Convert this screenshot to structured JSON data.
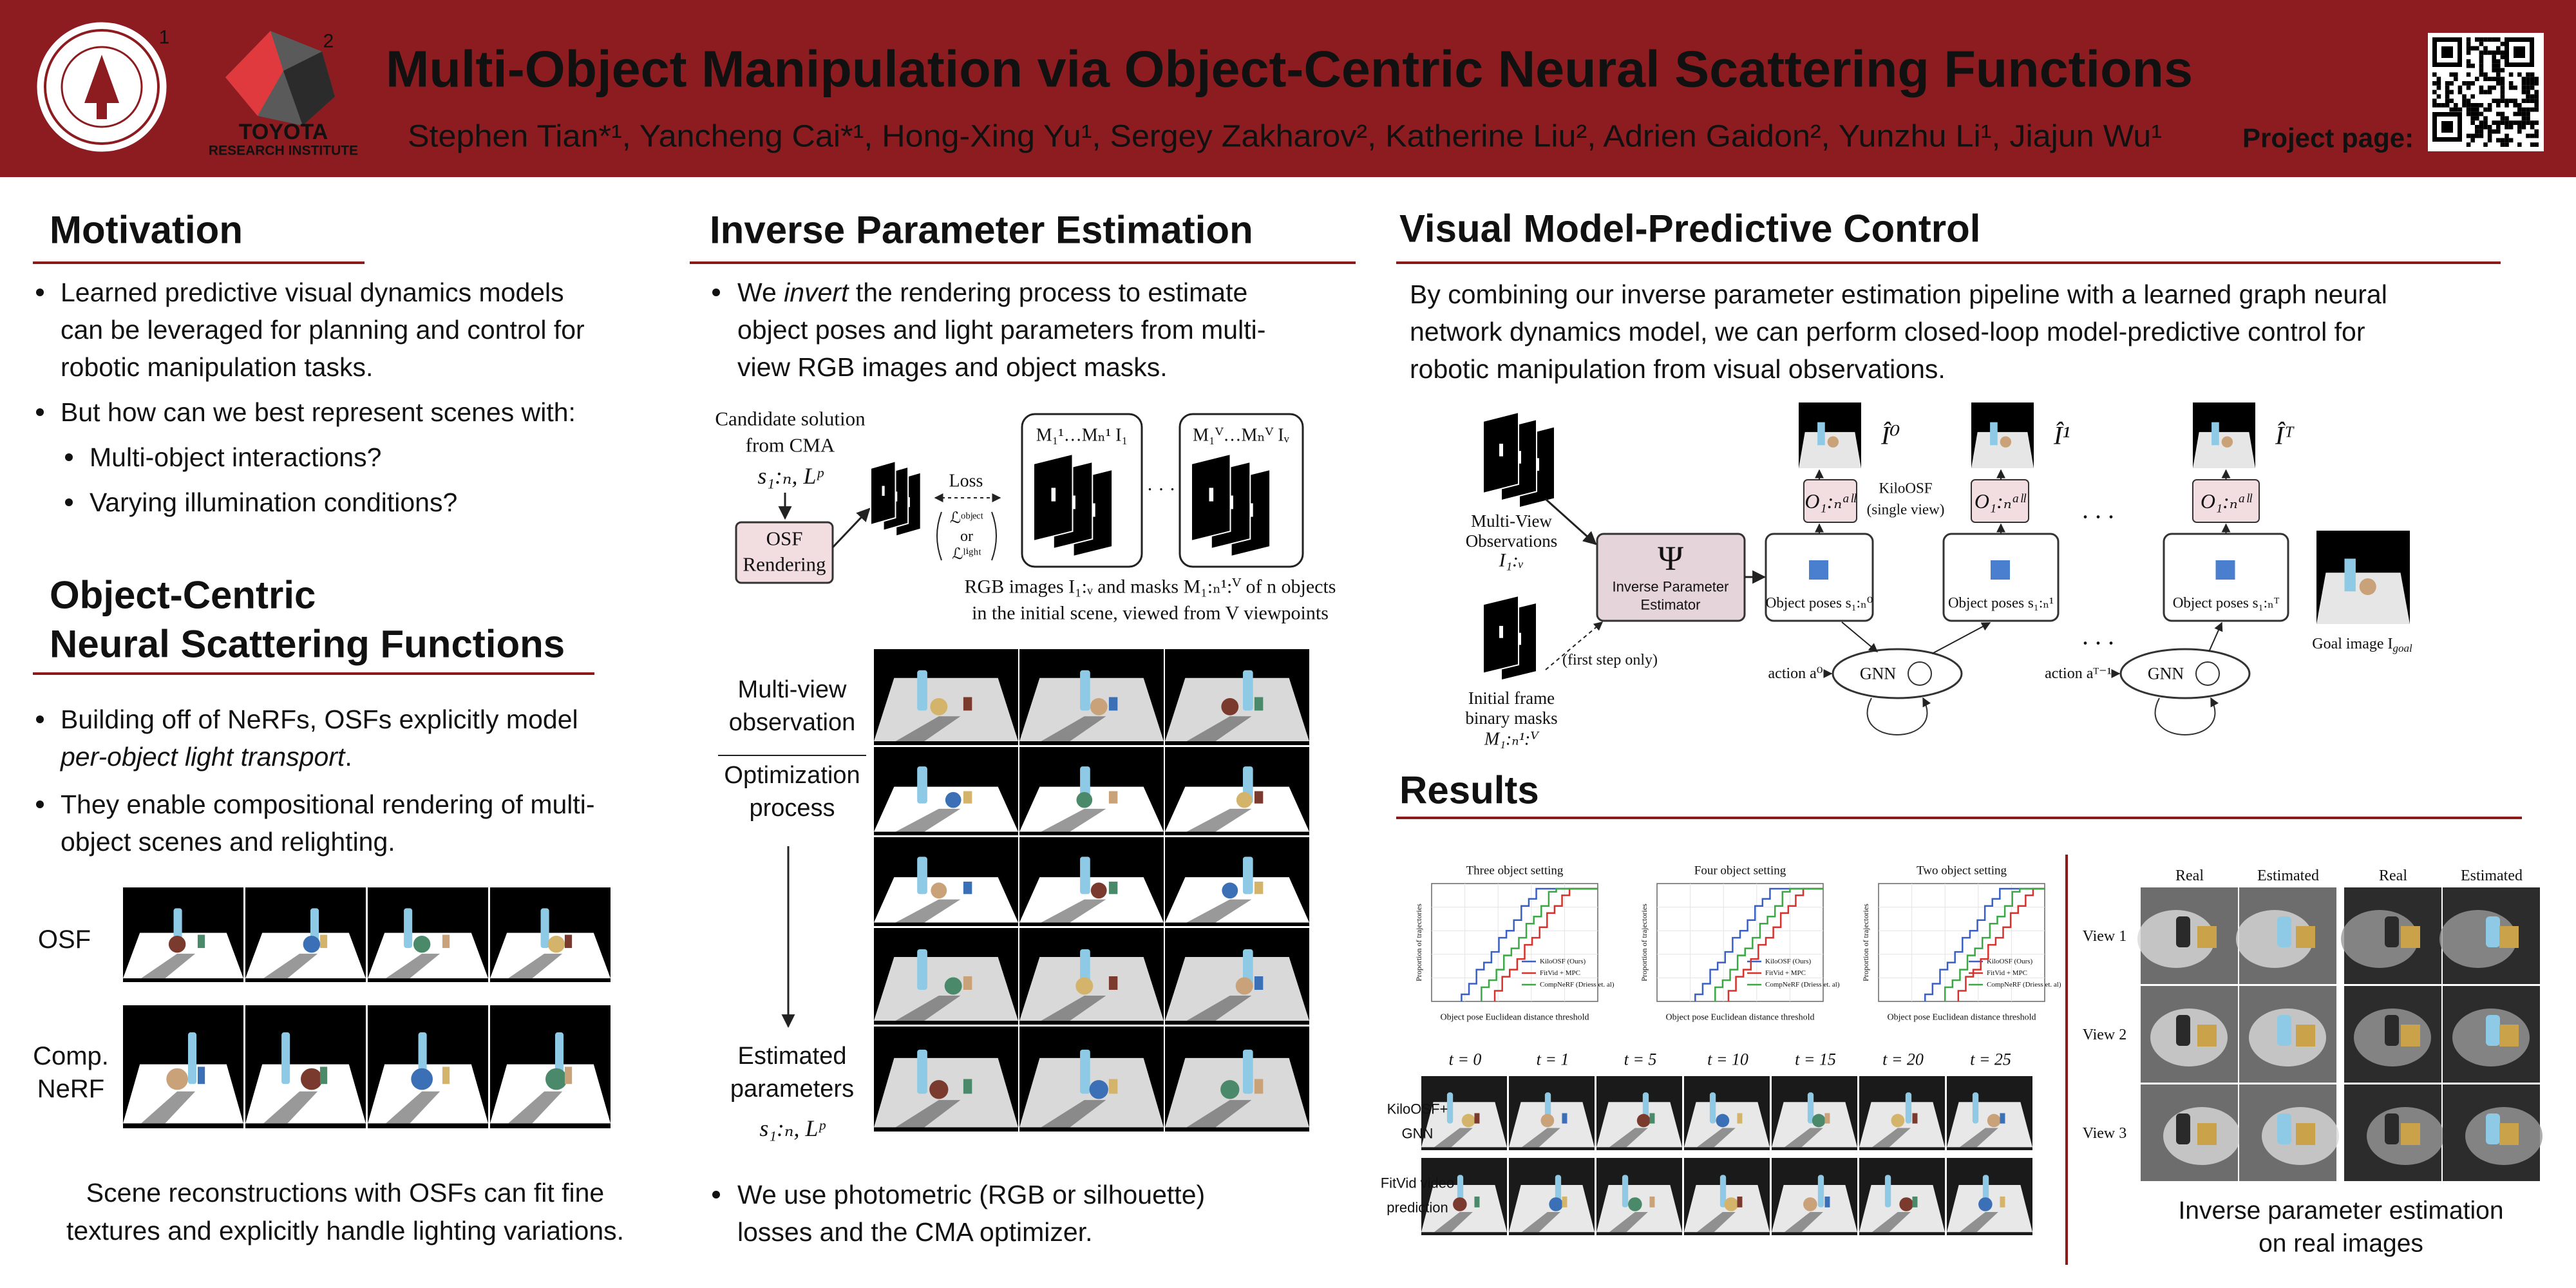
{
  "header": {
    "title": "Multi-Object Manipulation via Object-Centric Neural Scattering Functions",
    "authors": "Stephen Tian*¹, Yancheng Cai*¹, Hong-Xing Yu¹, Sergey Zakharov², Katherine Liu², Adrien Gaidon², Yunzhu Li¹, Jiajun Wu¹",
    "affiliation_marks": [
      "1",
      "2"
    ],
    "tri_logo": [
      "TOYOTA",
      "RESEARCH INSTITUTE"
    ],
    "project_page": "Project page:"
  },
  "motivation": {
    "heading": "Motivation",
    "bullets": [
      {
        "lines": [
          "Learned predictive visual dynamics models",
          "can be leveraged for planning and control for",
          "robotic manipulation tasks."
        ]
      },
      {
        "lines": [
          "But how can we best represent scenes with:"
        ]
      },
      {
        "lines": [
          "Multi-object interactions?"
        ],
        "sub": true
      },
      {
        "lines": [
          "Varying illumination conditions?"
        ],
        "sub": true
      }
    ]
  },
  "osf": {
    "heading": [
      "Object-Centric",
      "Neural Scattering Functions"
    ],
    "bullets": [
      {
        "lines": [
          "Building off of NeRFs, OSFs explicitly model",
          [
            {
              "text": "per-object light transport",
              "italic": true
            },
            {
              "text": "."
            }
          ]
        ]
      },
      {
        "lines": [
          "They enable compositional rendering of multi-",
          "object scenes and relighting."
        ]
      }
    ],
    "row_labels": [
      [
        "OSF"
      ],
      [
        "Comp.",
        "NeRF"
      ]
    ],
    "caption": [
      "Scene reconstructions with OSFs can fit fine",
      "textures and explicitly handle lighting variations."
    ]
  },
  "inverse": {
    "heading": "Inverse Parameter Estimation",
    "bullets": [
      {
        "lines": [
          [
            {
              "text": "We "
            },
            {
              "text": "invert",
              "italic": true
            },
            {
              "text": " the rendering process to estimate"
            }
          ],
          "object poses and light parameters from multi-",
          "view RGB images and object masks."
        ]
      }
    ],
    "diagram": {
      "candidate": [
        "Candidate solution",
        "from CMA"
      ],
      "params": "s₁:ₙ, Lᵖ",
      "render": [
        "OSF",
        "Rendering"
      ],
      "loss": "Loss",
      "loss_terms": [
        "ℒᵒᵇʲᵉᶜᵗ",
        "or",
        "ℒˡⁱᵍʰᵗ"
      ],
      "frame_labels": [
        "M₁¹…Mₙ¹ I₁",
        "M₁ⱽ…Mₙⱽ Iᵥ"
      ],
      "ellipsis": "· · ·",
      "caption": [
        "RGB images I₁:ᵥ and masks M₁:ₙ¹:ⱽ of n objects",
        "in the initial scene, viewed from V viewpoints"
      ]
    },
    "stages": {
      "observation": [
        "Multi-view",
        "observation"
      ],
      "optimization": [
        "Optimization",
        "process"
      ],
      "estimated": [
        "Estimated",
        "parameters"
      ],
      "params": "s₁:ₙ, Lᵖ"
    },
    "bottom_bullets": [
      {
        "lines": [
          "We use photometric (RGB or silhouette)",
          "losses and the CMA optimizer."
        ]
      }
    ]
  },
  "vmpc": {
    "heading": "Visual Model-Predictive Control",
    "paragraph": [
      "By combining our inverse parameter estimation pipeline with a learned graph neural",
      "network dynamics model, we can perform closed-loop model-predictive control for",
      "robotic manipulation from visual observations."
    ],
    "diagram": {
      "observations": [
        "Multi-View",
        "Observations"
      ],
      "observations_sym": "I₁:ᵥ",
      "masks": [
        "Initial frame",
        "binary masks"
      ],
      "masks_sym": "M₁:ₙ¹:ⱽ",
      "estimator_sym": "Ψ",
      "estimator": [
        "Inverse Parameter",
        "Estimator"
      ],
      "first_step": "(first step only)",
      "poses": [
        "Object poses s₁:ₙ⁰",
        "Object poses s₁:ₙ¹",
        "Object poses s₁:ₙᵀ"
      ],
      "osf_outputs": [
        "O₁:ₙᵃˡˡ",
        "O₁:ₙᵃˡˡ",
        "O₁:ₙᵃˡˡ"
      ],
      "renders": [
        "Î⁰",
        "Î¹",
        "Îᵀ"
      ],
      "kiloosf": [
        "KiloOSF",
        "(single view)"
      ],
      "actions": [
        "action a⁰",
        "action aᵀ⁻¹"
      ],
      "gnn": [
        "GNN",
        "GNN"
      ],
      "goal": [
        "Goal image I",
        "goal"
      ],
      "ellipses": [
        ". . .",
        ". . ."
      ]
    }
  },
  "results": {
    "heading": "Results",
    "plots": [
      {
        "title": "Three object setting",
        "xlabel": "Object pose Euclidean distance threshold",
        "ylabel": "Proportion of trajectories",
        "legend": [
          {
            "name": "KiloOSF (Ours)",
            "color": "#3a5fc4"
          },
          {
            "name": "FitVid + MPC",
            "color": "#d8312b"
          },
          {
            "name": "CompNeRF (Driess et. al)",
            "color": "#3aa845"
          }
        ]
      },
      {
        "title": "Four object setting",
        "xlabel": "Object pose Euclidean distance threshold",
        "ylabel": "Proportion of trajectories",
        "legend": [
          {
            "name": "KiloOSF (Ours)",
            "color": "#3a5fc4"
          },
          {
            "name": "FitVid + MPC",
            "color": "#d8312b"
          },
          {
            "name": "CompNeRF (Driess et. al)",
            "color": "#3aa845"
          }
        ]
      },
      {
        "title": "Two object setting",
        "xlabel": "Object pose Euclidean distance threshold",
        "ylabel": "Proportion of trajectories",
        "legend": [
          {
            "name": "KiloOSF (Ours)",
            "color": "#3a5fc4"
          },
          {
            "name": "FitVid + MPC",
            "color": "#d8312b"
          },
          {
            "name": "CompNeRF (Driess et. al)",
            "color": "#3aa845"
          }
        ]
      }
    ],
    "timesteps": [
      "t = 0",
      "t = 1",
      "t = 5",
      "t = 10",
      "t = 15",
      "t = 20",
      "t = 25"
    ],
    "rows": [
      [
        "KiloOSF+",
        "GNN"
      ],
      [
        "FitVid video",
        "prediction"
      ]
    ],
    "real": {
      "columns": [
        "Real",
        "Estimated",
        "Real",
        "Estimated"
      ],
      "views": [
        "View 1",
        "View 2",
        "View 3"
      ],
      "caption": [
        "Inverse parameter estimation",
        "on real images"
      ]
    }
  }
}
